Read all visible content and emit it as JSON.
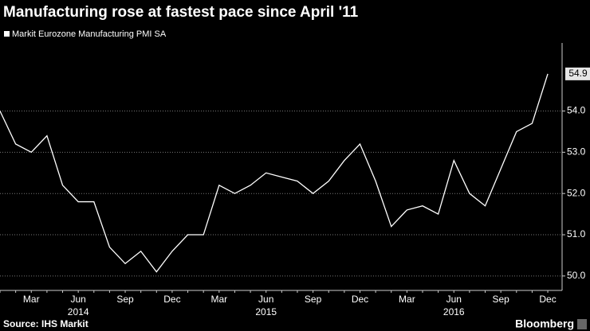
{
  "chart_data": {
    "type": "line",
    "title": "Manufacturing rose at fastest pace since April '11",
    "source": "Source: IHS Markit",
    "brand": "Bloomberg",
    "categories": [
      null,
      null,
      "Mar",
      null,
      null,
      "Jun",
      null,
      null,
      "Sep",
      null,
      null,
      "Dec",
      null,
      null,
      "Mar",
      null,
      null,
      "Jun",
      null,
      null,
      "Sep",
      null,
      null,
      "Dec",
      null,
      null,
      "Mar",
      null,
      null,
      "Jun",
      null,
      null,
      "Sep",
      null,
      null,
      "Dec"
    ],
    "years": [
      "2014",
      "2015",
      "2016"
    ],
    "series": [
      {
        "name": "Markit Eurozone Manufacturing PMI SA",
        "color": "#ffffff",
        "values": [
          54.0,
          53.2,
          53.0,
          53.4,
          52.2,
          51.8,
          51.8,
          50.7,
          50.3,
          50.6,
          50.1,
          50.6,
          51.0,
          51.0,
          52.2,
          52.0,
          52.2,
          52.5,
          52.4,
          52.3,
          52.0,
          52.3,
          52.8,
          53.2,
          52.3,
          51.2,
          51.6,
          51.7,
          51.5,
          52.8,
          52.0,
          51.7,
          52.6,
          53.5,
          53.7,
          54.9
        ]
      }
    ],
    "ylim": [
      49.65,
      55.65
    ],
    "yticks": [
      {
        "value": 50,
        "label": "50.0"
      },
      {
        "value": 51,
        "label": "51.0"
      },
      {
        "value": 52,
        "label": "52.0"
      },
      {
        "value": 53,
        "label": "53.0"
      },
      {
        "value": 54,
        "label": "54.0"
      }
    ],
    "grid": true
  }
}
